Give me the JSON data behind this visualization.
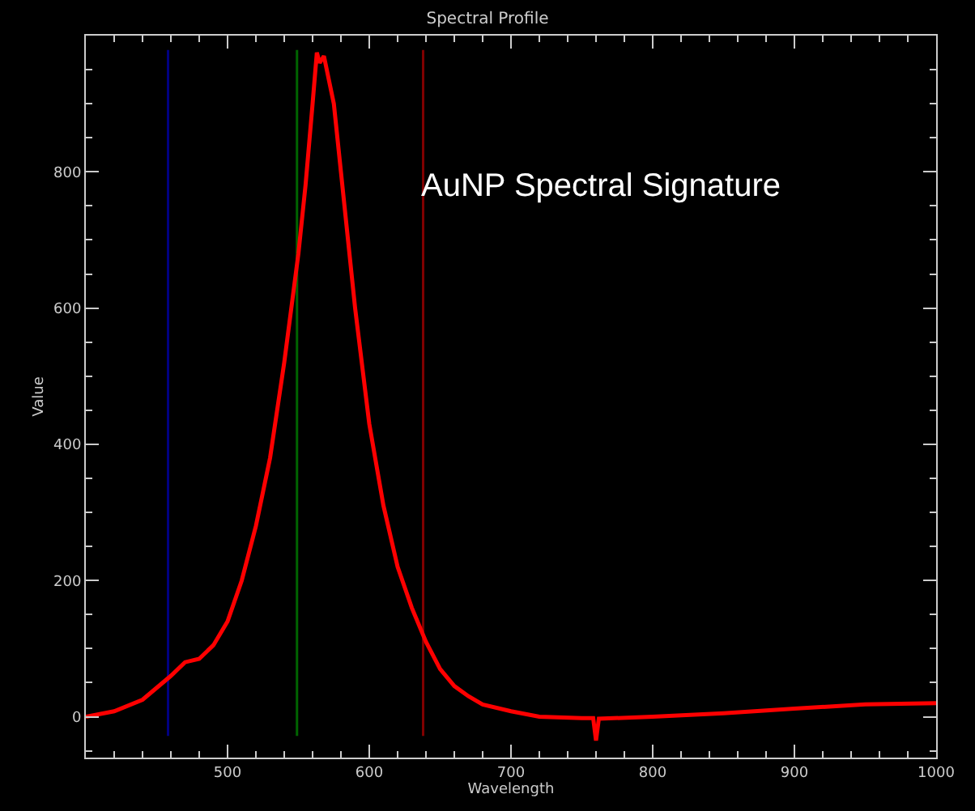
{
  "chart_data": {
    "type": "line",
    "title": "Spectral Profile",
    "xlabel": "Wavelength",
    "ylabel": "Value",
    "annotations": [
      "AuNP Spectral Signature"
    ],
    "x": [
      400,
      420,
      440,
      460,
      470,
      480,
      490,
      500,
      510,
      520,
      530,
      540,
      550,
      555,
      560,
      563,
      565,
      568,
      572,
      575,
      580,
      590,
      600,
      610,
      620,
      630,
      640,
      650,
      660,
      670,
      680,
      700,
      720,
      750,
      758,
      760,
      762,
      800,
      850,
      900,
      950,
      1000
    ],
    "series": [
      {
        "color": "#ff0000",
        "values": [
          0,
          8,
          25,
          60,
          80,
          85,
          105,
          140,
          200,
          280,
          380,
          520,
          680,
          780,
          900,
          975,
          960,
          970,
          930,
          900,
          800,
          600,
          430,
          310,
          220,
          160,
          110,
          70,
          45,
          30,
          18,
          8,
          0,
          -2,
          -2,
          -35,
          -3,
          0,
          5,
          12,
          18,
          20
        ]
      }
    ],
    "xlim": [
      400,
      1000
    ],
    "ylim": [
      -60,
      1000
    ],
    "xticks": [
      500,
      600,
      700,
      800,
      900,
      1000
    ],
    "yticks": [
      0,
      200,
      400,
      600,
      800
    ],
    "ref_lines": [
      {
        "axis": "x",
        "value": 458,
        "color": "#000080"
      },
      {
        "axis": "x",
        "value": 549,
        "color": "#006400"
      },
      {
        "axis": "x",
        "value": 638,
        "color": "#800000"
      }
    ],
    "marker": "none",
    "line_style": "solid"
  }
}
